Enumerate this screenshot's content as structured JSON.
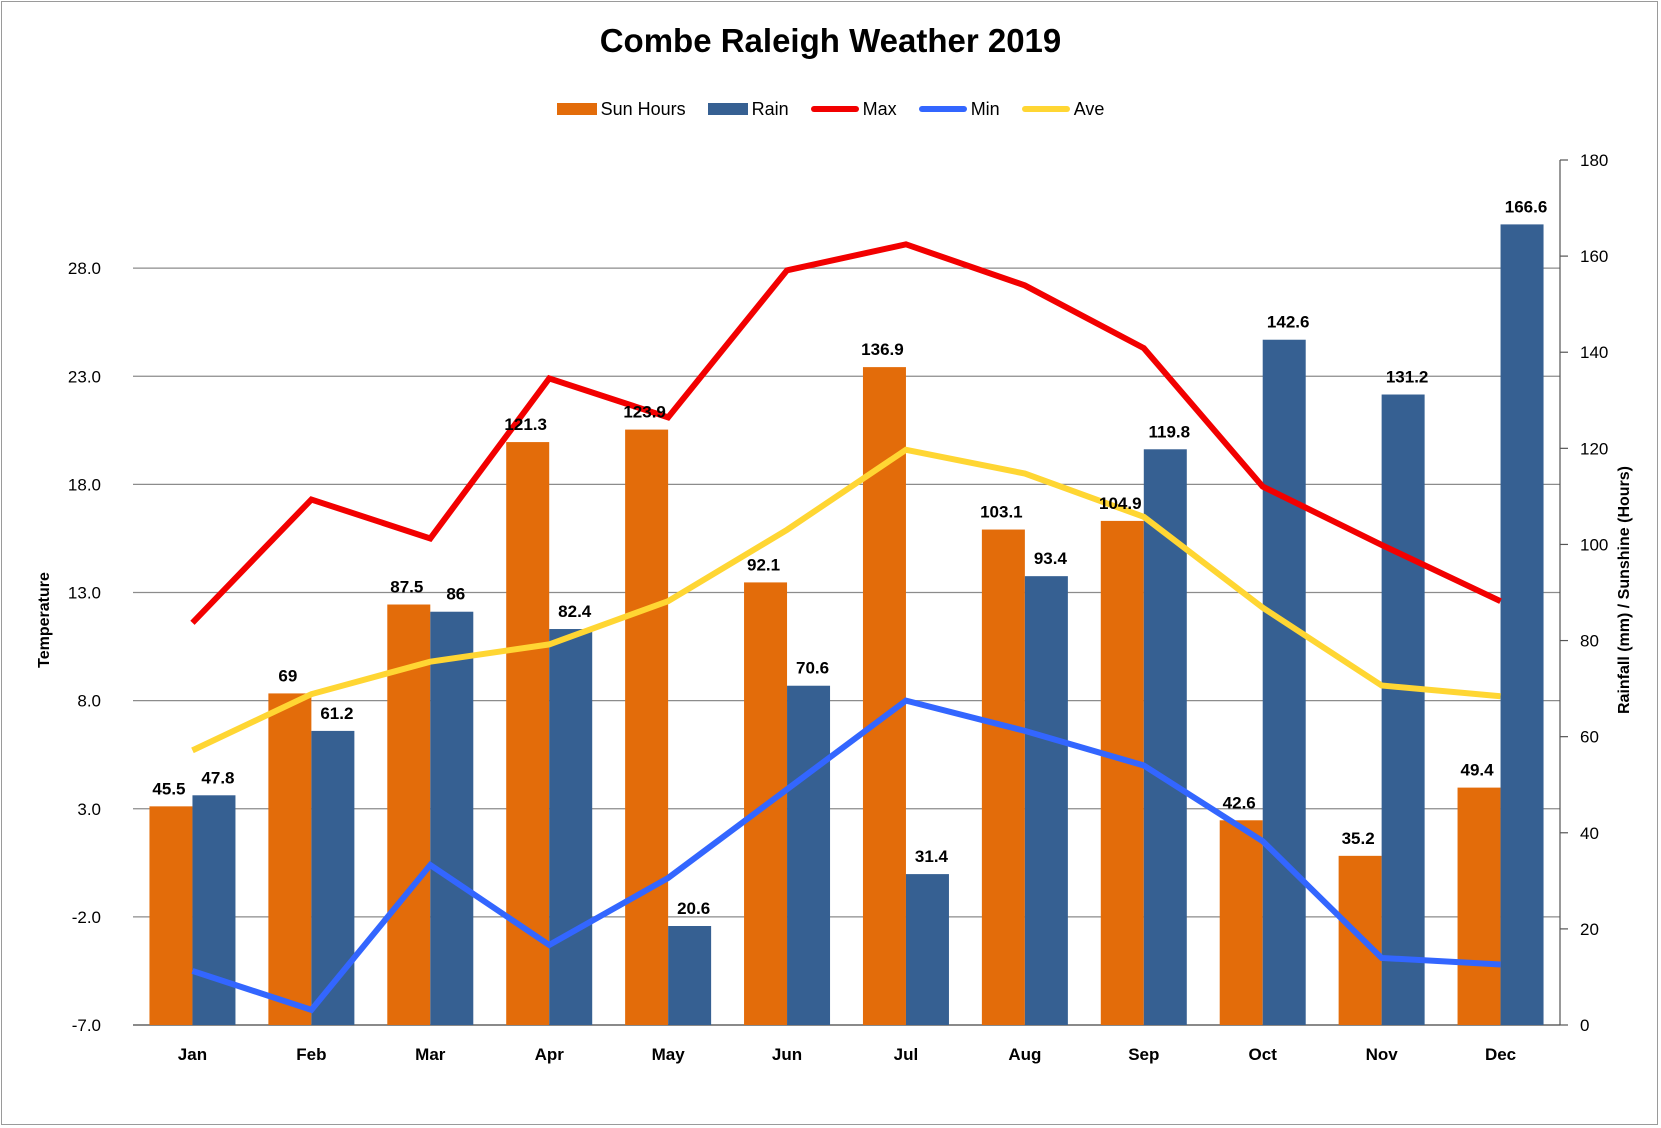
{
  "chart_data": {
    "type": "bar",
    "title": "Combe Raleigh Weather 2019",
    "categories": [
      "Jan",
      "Feb",
      "Mar",
      "Apr",
      "May",
      "Jun",
      "Jul",
      "Aug",
      "Sep",
      "Oct",
      "Nov",
      "Dec"
    ],
    "y_left": {
      "label": "Temperature",
      "range": [
        -7.0,
        33.0
      ],
      "ticks": [
        "-7.0",
        "-2.0",
        "3.0",
        "8.0",
        "13.0",
        "18.0",
        "23.0",
        "28.0"
      ],
      "tick_values": [
        -7,
        -2,
        3,
        8,
        13,
        18,
        23,
        28
      ]
    },
    "y_right": {
      "label": "Rainfall (mm) / Sunshine (Hours)",
      "range": [
        0,
        180
      ],
      "ticks": [
        "0",
        "20",
        "40",
        "60",
        "80",
        "100",
        "120",
        "140",
        "160",
        "180"
      ],
      "tick_values": [
        0,
        20,
        40,
        60,
        80,
        100,
        120,
        140,
        160,
        180
      ]
    },
    "grid": true,
    "legend_position": "top",
    "bar_series": [
      {
        "name": "Sun Hours",
        "color": "#e36c0a",
        "values": [
          45.5,
          69,
          87.5,
          121.3,
          123.9,
          92.1,
          136.9,
          103.1,
          104.9,
          42.6,
          35.2,
          49.4
        ],
        "labels": [
          "45.5",
          "69",
          "87.5",
          "121.3",
          "123.9",
          "92.1",
          "136.9",
          "103.1",
          "104.9",
          "42.6",
          "35.2",
          "49.4"
        ]
      },
      {
        "name": "Rain",
        "color": "#366092",
        "values": [
          47.8,
          61.2,
          86,
          82.4,
          20.6,
          70.6,
          31.4,
          93.4,
          119.8,
          142.6,
          131.2,
          166.6
        ],
        "labels": [
          "47.8",
          "61.2",
          "86",
          "82.4",
          "20.6",
          "70.6",
          "31.4",
          "93.4",
          "119.8",
          "142.6",
          "131.2",
          "166.6"
        ]
      }
    ],
    "line_series": [
      {
        "name": "Max",
        "color": "#f20000",
        "values": [
          11.6,
          17.3,
          15.5,
          22.9,
          21.1,
          27.9,
          29.1,
          27.2,
          24.3,
          17.9,
          15.2,
          12.6
        ]
      },
      {
        "name": "Min",
        "color": "#3366ff",
        "values": [
          -4.5,
          -6.3,
          0.4,
          -3.3,
          -0.2,
          3.9,
          8.0,
          6.6,
          5.0,
          1.5,
          -3.9,
          -4.2
        ]
      },
      {
        "name": "Ave",
        "color": "#ffd633",
        "values": [
          5.7,
          8.3,
          9.8,
          10.6,
          12.6,
          15.9,
          19.6,
          18.5,
          16.5,
          12.3,
          8.7,
          8.2
        ]
      }
    ]
  }
}
